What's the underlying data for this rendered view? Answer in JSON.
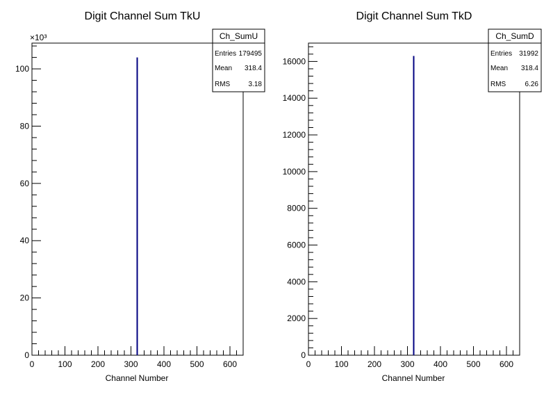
{
  "chart_data": [
    {
      "type": "bar",
      "title": "Digit Channel Sum TkU",
      "xlabel": "Channel Number",
      "ylabel": "",
      "xlim": [
        0,
        640
      ],
      "ylim": [
        0,
        109000
      ],
      "x_ticks": [
        0,
        100,
        200,
        300,
        400,
        500,
        600
      ],
      "y_ticks": [
        0,
        20,
        40,
        60,
        80,
        100
      ],
      "y_multiplier_label": "×10³",
      "y_scale": 1000,
      "x": [
        320
      ],
      "values": [
        104000
      ],
      "bar_color": "#000080",
      "stats": {
        "name": "Ch_SumU",
        "rows": [
          {
            "label": "Entries",
            "value": "179495"
          },
          {
            "label": "Mean",
            "value": "318.4"
          },
          {
            "label": "RMS",
            "value": "3.18"
          }
        ]
      }
    },
    {
      "type": "bar",
      "title": "Digit Channel Sum TkD",
      "xlabel": "Channel Number",
      "ylabel": "",
      "xlim": [
        0,
        640
      ],
      "ylim": [
        0,
        17000
      ],
      "x_ticks": [
        0,
        100,
        200,
        300,
        400,
        500,
        600
      ],
      "y_ticks": [
        0,
        2000,
        4000,
        6000,
        8000,
        10000,
        12000,
        14000,
        16000
      ],
      "y_multiplier_label": "",
      "y_scale": 1,
      "x": [
        320
      ],
      "values": [
        16300
      ],
      "bar_color": "#000080",
      "stats": {
        "name": "Ch_SumD",
        "rows": [
          {
            "label": "Entries",
            "value": "31992"
          },
          {
            "label": "Mean",
            "value": "318.4"
          },
          {
            "label": "RMS",
            "value": "6.26"
          }
        ]
      }
    }
  ]
}
